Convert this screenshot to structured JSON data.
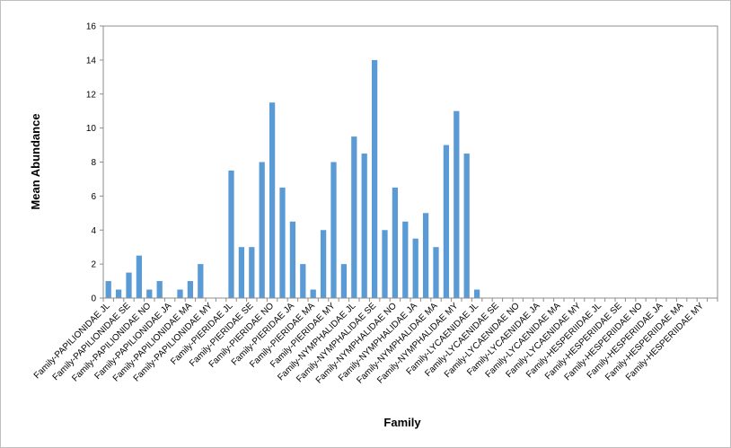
{
  "chart_data": {
    "type": "bar",
    "xlabel": "Family",
    "ylabel": "Mean Abundance",
    "ylim": [
      0,
      16
    ],
    "yticks": [
      0,
      2,
      4,
      6,
      8,
      10,
      12,
      14,
      16
    ],
    "grid": false,
    "legend": "none",
    "bar_color": "#5B9BD5",
    "categories": [
      "Family-PAPILIONIDAE JL",
      "",
      "Family-PAPILIONIDAE SE",
      "",
      "Family-PAPILIONIDAE NO",
      "",
      "Family-PAPILIONIDAE JA",
      "",
      "Family-PAPILIONIDAE MA",
      "",
      "Family-PAPILIONIDAE MY",
      "",
      "Family-PIERIDAE JL",
      "",
      "Family-PIERIDAE SE",
      "",
      "Family-PIERIDAE NO",
      "",
      "Family-PIERIDAE JA",
      "",
      "Family-PIERIDAE MA",
      "",
      "Family-PIERIDAE MY",
      "",
      "Family-NYMPHALIDAE JL",
      "",
      "Family-NYMPHALIDAE SE",
      "",
      "Family-NYMPHALIDAE NO",
      "",
      "Family-NYMPHALIDAE JA",
      "",
      "Family-NYMPHALIDAE MA",
      "",
      "Family-NYMPHALIDAE MY",
      "",
      "Family-LYCAENIDAE JL",
      "",
      "Family-LYCAENIDAE SE",
      "",
      "Family-LYCAENIDAE NO",
      "",
      "Family-LYCAENIDAE JA",
      "",
      "Family-LYCAENIDAE MA",
      "",
      "Family-LYCAENIDAE MY",
      "",
      "Family-HESPERIIDAE JL",
      "",
      "Family-HESPERIIDAE SE",
      "",
      "Family-HESPERIIDAE NO",
      "",
      "Family-HESPERIIDAE JA",
      "",
      "Family-HESPERIIDAE MA",
      "",
      "Family-HESPERIIDAE MY",
      ""
    ],
    "values": [
      1,
      0.5,
      1.5,
      2.5,
      0.5,
      1,
      0,
      0.5,
      1,
      2,
      0,
      0,
      7.5,
      3,
      3,
      8,
      11.5,
      6.5,
      4.5,
      2,
      0.5,
      4,
      8,
      2,
      9.5,
      8.5,
      14,
      4,
      6.5,
      4.5,
      3.5,
      5,
      3,
      9,
      11,
      8.5,
      0.5,
      0,
      0,
      0,
      0,
      0,
      0,
      0,
      0,
      0,
      0,
      0,
      0,
      0,
      0,
      0,
      0,
      0,
      0,
      0,
      0,
      0,
      0,
      0
    ]
  }
}
